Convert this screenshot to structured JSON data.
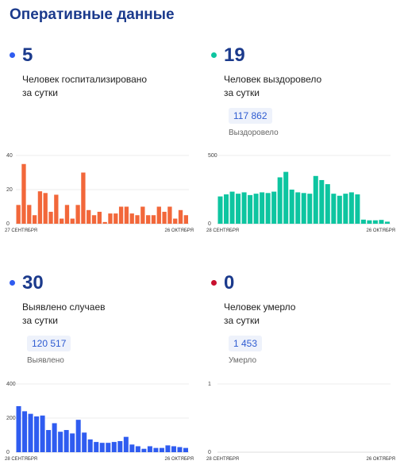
{
  "title": "Оперативные данные",
  "colors": {
    "hosp": "#f2673a",
    "recov": "#0dc5a0",
    "cases": "#2f5cf0",
    "death": "#c8102e",
    "accent": "#1b3a8c"
  },
  "cards": {
    "hosp": {
      "value": "5",
      "label1": "Человек госпитализировано",
      "label2": "за сутки"
    },
    "recov": {
      "value": "19",
      "label1": "Человек выздоровело",
      "label2": "за сутки",
      "total": "117 862",
      "total_label": "Выздоровело"
    },
    "cases": {
      "value": "30",
      "label1": "Выявлено случаев",
      "label2": "за сутки",
      "total": "120 517",
      "total_label": "Выявлено"
    },
    "death": {
      "value": "0",
      "label1": "Человек умерло",
      "label2": "за сутки",
      "total": "1 453",
      "total_label": "Умерло"
    }
  },
  "chart_data": [
    {
      "type": "bar",
      "id": "hosp",
      "ylim": [
        0,
        40
      ],
      "yticks": [
        "0",
        "20",
        "40"
      ],
      "x_start": "27 СЕНТЯБРЯ",
      "x_end": "26 ОКТЯБРЯ",
      "values": [
        11,
        35,
        11,
        5,
        19,
        18,
        7,
        17,
        3,
        11,
        3,
        11,
        30,
        8,
        5,
        7,
        1,
        6,
        6,
        10,
        10,
        6,
        5,
        10,
        5,
        5,
        10,
        7,
        10,
        3,
        8,
        5
      ]
    },
    {
      "type": "bar",
      "id": "recov",
      "ylim": [
        0,
        500
      ],
      "yticks": [
        "0",
        "500"
      ],
      "x_start": "28 СЕНТЯБРЯ",
      "x_end": "26 ОКТЯБРЯ",
      "values": [
        200,
        215,
        235,
        220,
        230,
        210,
        220,
        230,
        225,
        235,
        340,
        380,
        250,
        230,
        225,
        220,
        350,
        320,
        290,
        220,
        205,
        220,
        230,
        215,
        30,
        25,
        25,
        28,
        15
      ]
    },
    {
      "type": "bar",
      "id": "cases",
      "ylim": [
        0,
        400
      ],
      "yticks": [
        "0",
        "200",
        "400"
      ],
      "x_start": "28 СЕНТЯБРЯ",
      "x_end": "26 ОКТЯБРЯ",
      "values": [
        270,
        240,
        225,
        210,
        215,
        130,
        170,
        120,
        130,
        110,
        190,
        115,
        75,
        60,
        55,
        55,
        60,
        65,
        90,
        45,
        35,
        20,
        35,
        25,
        25,
        40,
        35,
        30,
        25
      ]
    },
    {
      "type": "bar",
      "id": "death",
      "ylim": [
        0,
        1
      ],
      "yticks": [
        "0",
        "1"
      ],
      "x_start": "28 СЕНТЯБРЯ",
      "x_end": "26 ОКТЯБРЯ",
      "values": []
    }
  ]
}
